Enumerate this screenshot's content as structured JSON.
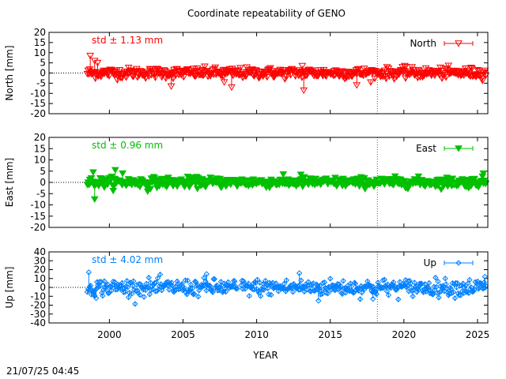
{
  "chart_data": {
    "title": "Coordinate repeatability of GENO",
    "type": "scatter",
    "timestamp": "21/07/25 04:45",
    "xlabel": "YEAR",
    "xlim": [
      1995.9,
      2025.7
    ],
    "xticks": [
      "2000",
      "2005",
      "2010",
      "2015",
      "2020",
      "2025"
    ],
    "xtick_values": [
      2000,
      2005,
      2010,
      2015,
      2020,
      2025
    ],
    "event_line_x": 2018.2,
    "data_span": [
      1998.5,
      2025.6
    ],
    "panels": [
      {
        "id": "north",
        "ylabel": "North [mm]",
        "ylim": [
          -20,
          20
        ],
        "yticks": [
          "20",
          "15",
          "10",
          "5",
          "0",
          "-5",
          "-10",
          "-15",
          "-20"
        ],
        "ytick_values": [
          20,
          15,
          10,
          5,
          0,
          -5,
          -10,
          -15,
          -20
        ],
        "series": [
          {
            "name": "North",
            "color": "#ff0000",
            "marker": "triangle-down-open",
            "std": 1.13
          }
        ],
        "std_label": "std ± 1.13 mm",
        "outliers": [
          [
            1998.7,
            8.5
          ],
          [
            1999.0,
            6.0
          ],
          [
            1999.2,
            5.0
          ],
          [
            2004.2,
            -6.5
          ],
          [
            2007.8,
            -4.5
          ],
          [
            2008.3,
            -7.0
          ],
          [
            2013.1,
            3.5
          ],
          [
            2013.2,
            -8.5
          ],
          [
            2016.8,
            -6.0
          ],
          [
            2020.1,
            3.0
          ]
        ],
        "gap": []
      },
      {
        "id": "east",
        "ylabel": "East [mm]",
        "ylim": [
          -20,
          20
        ],
        "yticks": [
          "20",
          "15",
          "10",
          "5",
          "0",
          "-5",
          "-10",
          "-15",
          "-20"
        ],
        "ytick_values": [
          20,
          15,
          10,
          5,
          0,
          -5,
          -10,
          -15,
          -20
        ],
        "series": [
          {
            "name": "East",
            "color": "#00c000",
            "marker": "triangle-down-filled",
            "std": 0.96
          }
        ],
        "std_label": "std ± 0.96 mm",
        "outliers": [
          [
            1998.9,
            4.5
          ],
          [
            1999.0,
            -7.5
          ],
          [
            2000.4,
            5.5
          ],
          [
            2000.9,
            4.0
          ],
          [
            2002.6,
            -4.0
          ],
          [
            2013.0,
            3.5
          ],
          [
            2025.4,
            4.0
          ]
        ],
        "gap": []
      },
      {
        "id": "up",
        "ylabel": "Up [mm]",
        "ylim": [
          -40,
          40
        ],
        "yticks": [
          "40",
          "30",
          "20",
          "10",
          "0",
          "-10",
          "-20",
          "-30",
          "-40"
        ],
        "ytick_values": [
          40,
          30,
          20,
          10,
          0,
          -10,
          -20,
          -30,
          -40
        ],
        "series": [
          {
            "name": "Up",
            "color": "#0080ff",
            "marker": "diamond-open",
            "std": 4.02
          }
        ],
        "std_label": "std ± 4.02 mm",
        "outliers": [
          [
            1998.6,
            17
          ],
          [
            1999.1,
            -12
          ],
          [
            2006.6,
            15
          ],
          [
            2012.9,
            16
          ],
          [
            2014.2,
            -15
          ],
          [
            2017.9,
            -13
          ],
          [
            2025.5,
            12
          ]
        ],
        "gap": [
          2008.7,
          2008.9
        ]
      }
    ]
  }
}
